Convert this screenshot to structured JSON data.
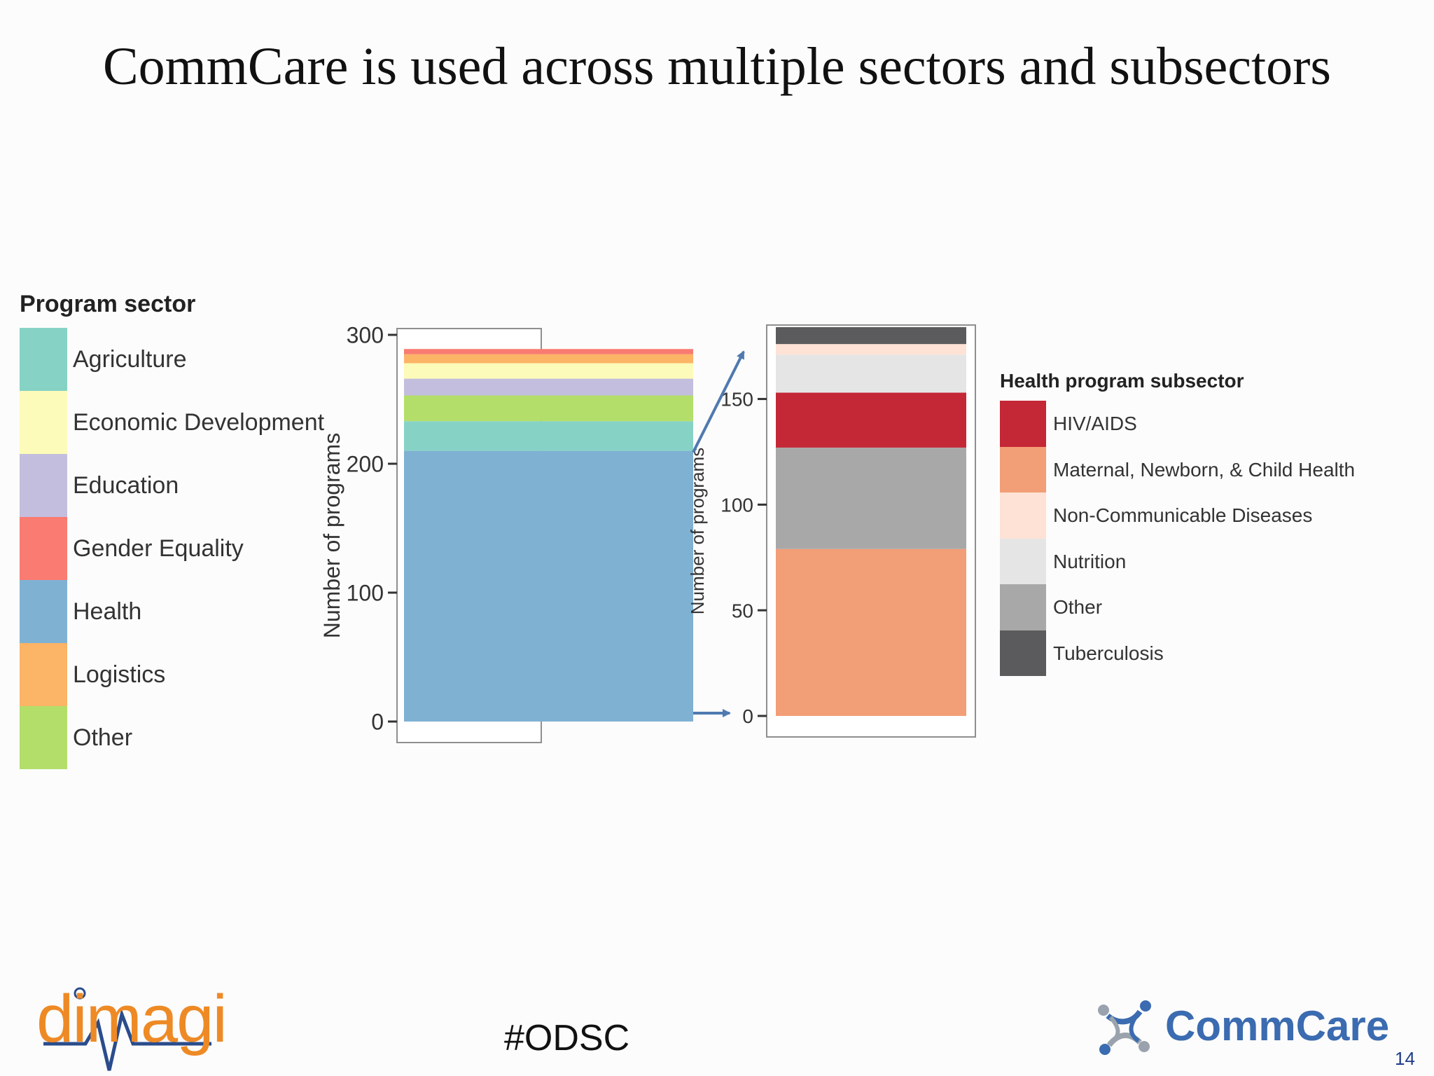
{
  "slide": {
    "title": "CommCare is used across multiple sectors and subsectors",
    "hashtag": "#ODSC",
    "page_number": "14"
  },
  "logos": {
    "left_brand": "dimagi",
    "right_brand": "CommCare"
  },
  "colors": {
    "arrow": "#4f7ab0"
  },
  "sector_legend": {
    "title": "Program sector",
    "items": [
      {
        "label": "Agriculture",
        "color": "#86d3c6"
      },
      {
        "label": "Economic Development",
        "color": "#fdfbb9"
      },
      {
        "label": "Education",
        "color": "#c3bedd"
      },
      {
        "label": "Gender Equality",
        "color": "#f97b71"
      },
      {
        "label": "Health",
        "color": "#7fb1d3"
      },
      {
        "label": "Logistics",
        "color": "#fcb466"
      },
      {
        "label": "Other",
        "color": "#b3de6a"
      }
    ]
  },
  "subsector_legend": {
    "title": "Health program subsector",
    "items": [
      {
        "label": "HIV/AIDS",
        "color": "#c42736"
      },
      {
        "label": "Maternal, Newborn, & Child Health",
        "color": "#f29e76"
      },
      {
        "label": "Non-Communicable Diseases",
        "color": "#fde2d5"
      },
      {
        "label": "Nutrition",
        "color": "#e5e5e5"
      },
      {
        "label": "Other",
        "color": "#a8a8a8"
      },
      {
        "label": "Tuberculosis",
        "color": "#5b5b5d"
      }
    ]
  },
  "chart_data": [
    {
      "type": "bar",
      "stacked": true,
      "categories": [
        ""
      ],
      "ylabel": "Number of programs",
      "xlabel": "",
      "ylim": [
        0,
        300
      ],
      "yticks": [
        0,
        100,
        200,
        300
      ],
      "grid": false,
      "series": [
        {
          "name": "Health",
          "values": [
            210
          ],
          "color": "#7fb1d3"
        },
        {
          "name": "Agriculture",
          "values": [
            23
          ],
          "color": "#86d3c6"
        },
        {
          "name": "Other",
          "values": [
            20
          ],
          "color": "#b3de6a"
        },
        {
          "name": "Education",
          "values": [
            13
          ],
          "color": "#c3bedd"
        },
        {
          "name": "Economic Development",
          "values": [
            12
          ],
          "color": "#fdfbb9"
        },
        {
          "name": "Logistics",
          "values": [
            7
          ],
          "color": "#fcb466"
        },
        {
          "name": "Gender Equality",
          "values": [
            4
          ],
          "color": "#f97b71"
        }
      ]
    },
    {
      "type": "bar",
      "stacked": true,
      "categories": [
        ""
      ],
      "ylabel": "Number of programs",
      "xlabel": "",
      "ylim": [
        0,
        185
      ],
      "yticks": [
        0,
        50,
        100,
        150
      ],
      "grid": false,
      "series": [
        {
          "name": "Maternal, Newborn, & Child Health",
          "values": [
            79
          ],
          "color": "#f29e76"
        },
        {
          "name": "Other",
          "values": [
            48
          ],
          "color": "#a8a8a8"
        },
        {
          "name": "HIV/AIDS",
          "values": [
            26
          ],
          "color": "#c42736"
        },
        {
          "name": "Nutrition",
          "values": [
            18
          ],
          "color": "#e5e5e5"
        },
        {
          "name": "Non-Communicable Diseases",
          "values": [
            5
          ],
          "color": "#fde2d5"
        },
        {
          "name": "Tuberculosis",
          "values": [
            8
          ],
          "color": "#5b5b5d"
        }
      ]
    }
  ]
}
